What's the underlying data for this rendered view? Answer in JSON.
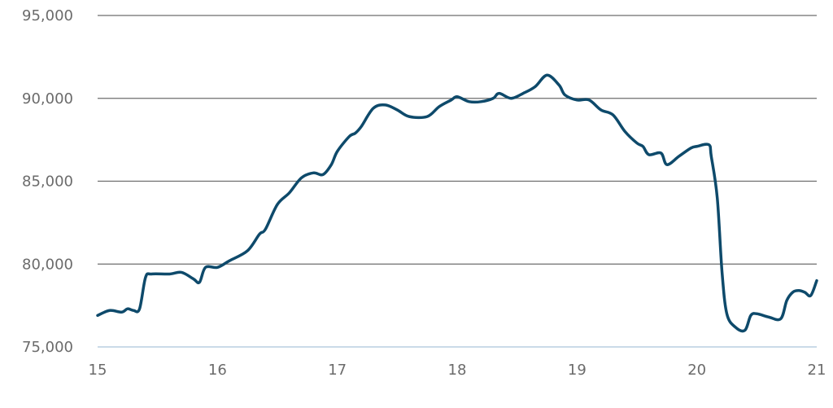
{
  "chart_data": {
    "type": "line",
    "title": "",
    "xlabel": "",
    "ylabel": "",
    "xlim": [
      15,
      21
    ],
    "ylim": [
      75000,
      95000
    ],
    "x_ticks": [
      15,
      16,
      17,
      18,
      19,
      20,
      21
    ],
    "x_tick_labels": [
      "15",
      "16",
      "17",
      "18",
      "19",
      "20",
      "21"
    ],
    "y_ticks": [
      75000,
      80000,
      85000,
      90000,
      95000
    ],
    "y_tick_labels": [
      "75,000",
      "80,000",
      "85,000",
      "90,000",
      "95,000"
    ],
    "grid": "horizontal",
    "legend": "none",
    "colors": {
      "line": "#0e4a6b",
      "grid": "#6e6e6e",
      "baseline": "#b9cfe0",
      "tick_text": "#6b6b6b"
    },
    "series": [
      {
        "x": [
          15.0,
          15.1,
          15.2,
          15.25,
          15.3,
          15.35,
          15.4,
          15.45,
          15.6,
          15.7,
          15.8,
          15.85,
          15.9,
          16.0,
          16.1,
          16.25,
          16.35,
          16.4,
          16.5,
          16.6,
          16.7,
          16.8,
          16.88,
          16.95,
          17.0,
          17.1,
          17.15,
          17.2,
          17.3,
          17.4,
          17.5,
          17.6,
          17.75,
          17.85,
          17.95,
          18.0,
          18.1,
          18.2,
          18.3,
          18.35,
          18.45,
          18.55,
          18.65,
          18.75,
          18.85,
          18.9,
          19.0,
          19.1,
          19.2,
          19.3,
          19.4,
          19.5,
          19.55,
          19.6,
          19.7,
          19.75,
          19.85,
          19.95,
          20.0,
          20.1,
          20.12,
          20.17,
          20.21,
          20.25,
          20.32,
          20.4,
          20.45,
          20.5,
          20.6,
          20.7,
          20.75,
          20.8,
          20.85,
          20.9,
          20.95,
          21.0
        ],
        "y": [
          76900,
          77200,
          77100,
          77300,
          77200,
          77300,
          79200,
          79400,
          79400,
          79500,
          79100,
          78900,
          79800,
          79800,
          80200,
          80800,
          81800,
          82100,
          83600,
          84300,
          85200,
          85500,
          85400,
          86000,
          86800,
          87700,
          87900,
          88300,
          89400,
          89600,
          89300,
          88900,
          88900,
          89500,
          89900,
          90100,
          89800,
          89800,
          90000,
          90300,
          90000,
          90300,
          90700,
          91400,
          90800,
          90200,
          89900,
          89900,
          89300,
          89000,
          88000,
          87300,
          87100,
          86600,
          86700,
          86000,
          86500,
          87000,
          87100,
          87200,
          86500,
          84000,
          79500,
          77000,
          76200,
          76000,
          76900,
          77000,
          76800,
          76700,
          77800,
          78300,
          78400,
          78300,
          78100,
          79000
        ]
      }
    ]
  }
}
